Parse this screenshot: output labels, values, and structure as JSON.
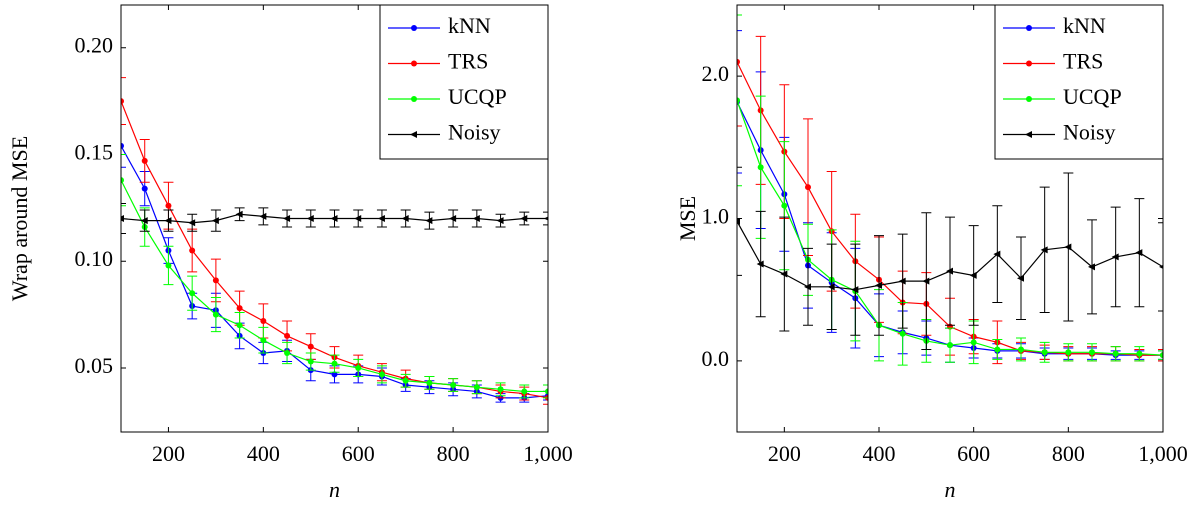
{
  "chart_data": [
    {
      "type": "line",
      "xlabel": "n",
      "ylabel": "Wrap around MSE",
      "x": [
        100,
        150,
        200,
        250,
        300,
        350,
        400,
        450,
        500,
        550,
        600,
        650,
        700,
        750,
        800,
        850,
        900,
        950,
        1000
      ],
      "xlim": [
        100,
        1000
      ],
      "ylim": [
        0.02,
        0.22
      ],
      "xticks": [
        200,
        400,
        600,
        800,
        {
          "value": 1000,
          "label": "1,000"
        }
      ],
      "yticks": [
        0.05,
        {
          "value": 0.1,
          "label": "0.10"
        },
        0.15,
        {
          "value": 0.2,
          "label": "0.20"
        }
      ],
      "legend": "top-right",
      "series": [
        {
          "name": "kNN",
          "color": "#0000ff",
          "marker": "circle",
          "values": [
            0.154,
            0.134,
            0.105,
            0.079,
            0.077,
            0.065,
            0.057,
            0.058,
            0.049,
            0.047,
            0.047,
            0.046,
            0.042,
            0.041,
            0.04,
            0.039,
            0.036,
            0.036,
            0.037
          ],
          "errors": [
            0.01,
            0.008,
            0.006,
            0.006,
            0.008,
            0.006,
            0.005,
            0.005,
            0.005,
            0.004,
            0.004,
            0.004,
            0.003,
            0.003,
            0.003,
            0.003,
            0.002,
            0.002,
            0.002
          ]
        },
        {
          "name": "TRS",
          "color": "#ff0000",
          "marker": "circle",
          "values": [
            0.175,
            0.147,
            0.126,
            0.105,
            0.091,
            0.078,
            0.072,
            0.065,
            0.06,
            0.055,
            0.051,
            0.048,
            0.045,
            0.043,
            0.042,
            0.041,
            0.039,
            0.038,
            0.036
          ],
          "errors": [
            0.011,
            0.01,
            0.011,
            0.01,
            0.01,
            0.008,
            0.008,
            0.007,
            0.006,
            0.005,
            0.005,
            0.004,
            0.004,
            0.003,
            0.003,
            0.003,
            0.003,
            0.003,
            0.003
          ]
        },
        {
          "name": "UCQP",
          "color": "#00ff00",
          "marker": "circle",
          "values": [
            0.138,
            0.116,
            0.098,
            0.085,
            0.075,
            0.07,
            0.063,
            0.057,
            0.053,
            0.052,
            0.05,
            0.047,
            0.044,
            0.043,
            0.042,
            0.041,
            0.04,
            0.039,
            0.039
          ],
          "errors": [
            0.012,
            0.009,
            0.009,
            0.008,
            0.008,
            0.006,
            0.006,
            0.005,
            0.004,
            0.004,
            0.004,
            0.004,
            0.003,
            0.003,
            0.003,
            0.003,
            0.003,
            0.003,
            0.003
          ]
        },
        {
          "name": "Noisy",
          "color": "#000000",
          "marker": "triangle-left",
          "values": [
            0.12,
            0.119,
            0.119,
            0.118,
            0.119,
            0.122,
            0.121,
            0.12,
            0.12,
            0.12,
            0.12,
            0.12,
            0.12,
            0.119,
            0.12,
            0.12,
            0.119,
            0.12,
            0.12
          ],
          "errors": [
            0.007,
            0.005,
            0.005,
            0.004,
            0.005,
            0.003,
            0.004,
            0.004,
            0.004,
            0.004,
            0.004,
            0.004,
            0.004,
            0.004,
            0.004,
            0.004,
            0.003,
            0.003,
            0.003
          ]
        }
      ]
    },
    {
      "type": "line",
      "xlabel": "n",
      "ylabel": "MSE",
      "x": [
        100,
        150,
        200,
        250,
        300,
        350,
        400,
        450,
        500,
        550,
        600,
        650,
        700,
        750,
        800,
        850,
        900,
        950,
        1000
      ],
      "xlim": [
        100,
        1000
      ],
      "ylim": [
        -0.5,
        2.5
      ],
      "xticks": [
        200,
        400,
        600,
        800,
        {
          "value": 1000,
          "label": "1,000"
        }
      ],
      "yticks": [
        {
          "value": 0,
          "label": "0.0"
        },
        {
          "value": 1,
          "label": "1.0"
        },
        {
          "value": 2,
          "label": "2.0"
        }
      ],
      "legend": "top-right",
      "series": [
        {
          "name": "kNN",
          "color": "#0000ff",
          "marker": "circle",
          "values": [
            1.82,
            1.48,
            1.17,
            0.67,
            0.55,
            0.44,
            0.25,
            0.2,
            0.16,
            0.11,
            0.09,
            0.07,
            0.07,
            0.05,
            0.05,
            0.05,
            0.04,
            0.04,
            0.04
          ],
          "errors": [
            0.5,
            0.55,
            0.4,
            0.3,
            0.35,
            0.35,
            0.22,
            0.15,
            0.12,
            0.12,
            0.07,
            0.05,
            0.05,
            0.04,
            0.04,
            0.04,
            0.03,
            0.03,
            0.03
          ]
        },
        {
          "name": "TRS",
          "color": "#ff0000",
          "marker": "circle",
          "values": [
            2.1,
            1.76,
            1.47,
            1.22,
            0.91,
            0.7,
            0.57,
            0.41,
            0.4,
            0.24,
            0.17,
            0.13,
            0.07,
            0.06,
            0.05,
            0.05,
            0.05,
            0.04,
            0.04
          ],
          "errors": [
            0.45,
            0.52,
            0.47,
            0.48,
            0.42,
            0.33,
            0.3,
            0.22,
            0.22,
            0.2,
            0.12,
            0.15,
            0.06,
            0.05,
            0.05,
            0.05,
            0.05,
            0.04,
            0.04
          ]
        },
        {
          "name": "UCQP",
          "color": "#00ff00",
          "marker": "circle",
          "values": [
            1.83,
            1.36,
            1.09,
            0.71,
            0.57,
            0.49,
            0.25,
            0.19,
            0.14,
            0.11,
            0.13,
            0.08,
            0.08,
            0.06,
            0.06,
            0.06,
            0.05,
            0.05,
            0.04
          ],
          "errors": [
            0.6,
            0.5,
            0.45,
            0.25,
            0.35,
            0.35,
            0.25,
            0.22,
            0.15,
            0.12,
            0.15,
            0.07,
            0.08,
            0.07,
            0.06,
            0.06,
            0.05,
            0.05,
            0.03
          ]
        },
        {
          "name": "Noisy",
          "color": "#000000",
          "marker": "triangle-left",
          "values": [
            0.98,
            0.68,
            0.61,
            0.52,
            0.52,
            0.5,
            0.53,
            0.56,
            0.56,
            0.63,
            0.6,
            0.75,
            0.58,
            0.78,
            0.8,
            0.66,
            0.73,
            0.76,
            0.66
          ],
          "errors": [
            0.38,
            0.37,
            0.4,
            0.27,
            0.3,
            0.32,
            0.35,
            0.33,
            0.48,
            0.38,
            0.35,
            0.34,
            0.29,
            0.44,
            0.52,
            0.33,
            0.35,
            0.38,
            0.31
          ]
        }
      ]
    }
  ]
}
